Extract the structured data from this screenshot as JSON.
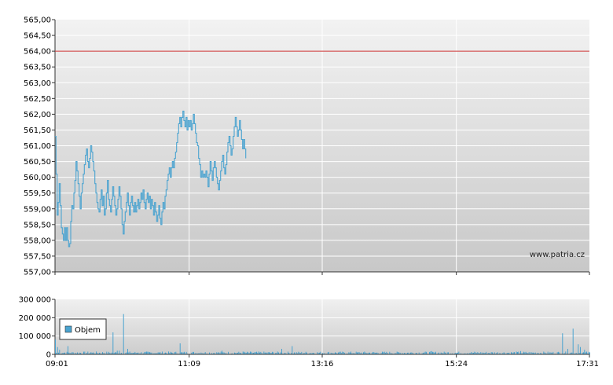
{
  "chart_data": [
    {
      "type": "line",
      "title": "",
      "xlabel": "",
      "ylabel": "",
      "ylim": [
        557.0,
        565.0
      ],
      "yticks": [
        "565,00",
        "564,50",
        "564,00",
        "563,50",
        "563,00",
        "562,50",
        "562,00",
        "561,50",
        "561,00",
        "560,50",
        "560,00",
        "559,50",
        "559,00",
        "558,50",
        "558,00",
        "557,50",
        "557,00"
      ],
      "ytick_values": [
        565,
        564.5,
        564,
        563.5,
        563,
        562.5,
        562,
        561.5,
        561,
        560.5,
        560,
        559.5,
        559,
        558.5,
        558,
        557.5,
        557
      ],
      "xticks": [
        "09:01",
        "11:09",
        "13:16",
        "15:24",
        "17:31"
      ],
      "xtick_minutes": [
        541,
        669,
        796,
        924,
        1051
      ],
      "xlim_minutes": [
        541,
        1051
      ],
      "reference_line": {
        "value": 564.0,
        "color": "#cc3333"
      },
      "line_color": "#4aa3d0",
      "watermark": "www.patria.cz",
      "grid": true,
      "series": [
        {
          "points": [
            [
              541,
              561.3
            ],
            [
              542,
              560.1
            ],
            [
              543,
              558.8
            ],
            [
              544,
              559.2
            ],
            [
              545,
              559.8
            ],
            [
              546,
              559.1
            ],
            [
              547,
              558.4
            ],
            [
              548,
              558.2
            ],
            [
              549,
              558.0
            ],
            [
              550,
              558.4
            ],
            [
              551,
              558.0
            ],
            [
              552,
              558.4
            ],
            [
              553,
              558.0
            ],
            [
              554,
              557.8
            ],
            [
              555,
              557.9
            ],
            [
              556,
              558.6
            ],
            [
              557,
              559.1
            ],
            [
              558,
              559.0
            ],
            [
              559,
              559.5
            ],
            [
              560,
              559.9
            ],
            [
              561,
              560.5
            ],
            [
              562,
              560.2
            ],
            [
              563,
              559.8
            ],
            [
              564,
              559.4
            ],
            [
              565,
              559.0
            ],
            [
              566,
              559.5
            ],
            [
              567,
              559.8
            ],
            [
              568,
              560.1
            ],
            [
              569,
              560.4
            ],
            [
              570,
              560.7
            ],
            [
              571,
              560.9
            ],
            [
              572,
              560.5
            ],
            [
              573,
              560.3
            ],
            [
              574,
              560.6
            ],
            [
              575,
              561.0
            ],
            [
              576,
              560.8
            ],
            [
              577,
              560.5
            ],
            [
              578,
              560.2
            ],
            [
              579,
              559.8
            ],
            [
              580,
              559.5
            ],
            [
              581,
              559.2
            ],
            [
              582,
              559.0
            ],
            [
              583,
              558.9
            ],
            [
              584,
              559.3
            ],
            [
              585,
              559.6
            ],
            [
              586,
              559.1
            ],
            [
              587,
              559.4
            ],
            [
              588,
              558.8
            ],
            [
              589,
              559.0
            ],
            [
              590,
              559.5
            ],
            [
              591,
              559.9
            ],
            [
              592,
              559.3
            ],
            [
              593,
              559.1
            ],
            [
              594,
              558.9
            ],
            [
              595,
              559.3
            ],
            [
              596,
              559.7
            ],
            [
              597,
              559.4
            ],
            [
              598,
              559.1
            ],
            [
              599,
              558.8
            ],
            [
              600,
              559.0
            ],
            [
              601,
              559.3
            ],
            [
              602,
              559.7
            ],
            [
              603,
              559.4
            ],
            [
              604,
              559.0
            ],
            [
              605,
              558.5
            ],
            [
              606,
              558.2
            ],
            [
              607,
              558.6
            ],
            [
              608,
              558.9
            ],
            [
              609,
              559.2
            ],
            [
              610,
              559.5
            ],
            [
              611,
              559.1
            ],
            [
              612,
              558.8
            ],
            [
              613,
              559.2
            ],
            [
              614,
              559.4
            ],
            [
              615,
              559.1
            ],
            [
              616,
              558.9
            ],
            [
              617,
              559.2
            ],
            [
              618,
              558.9
            ],
            [
              619,
              559.1
            ],
            [
              620,
              559.3
            ],
            [
              621,
              559.0
            ],
            [
              622,
              559.2
            ],
            [
              623,
              559.5
            ],
            [
              624,
              559.3
            ],
            [
              625,
              559.6
            ],
            [
              626,
              559.2
            ],
            [
              627,
              559.0
            ],
            [
              628,
              559.3
            ],
            [
              629,
              559.5
            ],
            [
              630,
              559.2
            ],
            [
              631,
              559.4
            ],
            [
              632,
              559.0
            ],
            [
              633,
              559.3
            ],
            [
              634,
              559.1
            ],
            [
              635,
              558.8
            ],
            [
              636,
              559.2
            ],
            [
              637,
              558.9
            ],
            [
              638,
              558.6
            ],
            [
              639,
              558.8
            ],
            [
              640,
              559.1
            ],
            [
              641,
              558.7
            ],
            [
              642,
              558.5
            ],
            [
              643,
              558.9
            ],
            [
              644,
              559.2
            ],
            [
              645,
              559.0
            ],
            [
              646,
              559.4
            ],
            [
              647,
              559.6
            ],
            [
              648,
              559.9
            ],
            [
              649,
              560.1
            ],
            [
              650,
              560.3
            ],
            [
              651,
              560.0
            ],
            [
              652,
              560.3
            ],
            [
              653,
              560.5
            ],
            [
              654,
              560.3
            ],
            [
              655,
              560.6
            ],
            [
              656,
              560.8
            ],
            [
              657,
              561.1
            ],
            [
              658,
              561.4
            ],
            [
              659,
              561.7
            ],
            [
              660,
              561.9
            ],
            [
              661,
              561.6
            ],
            [
              662,
              561.9
            ],
            [
              663,
              562.1
            ],
            [
              664,
              561.8
            ],
            [
              665,
              561.6
            ],
            [
              666,
              561.9
            ],
            [
              667,
              561.5
            ],
            [
              668,
              561.8
            ],
            [
              669,
              561.6
            ],
            [
              670,
              561.8
            ],
            [
              671,
              561.5
            ],
            [
              672,
              561.7
            ],
            [
              673,
              562.0
            ],
            [
              674,
              561.7
            ],
            [
              675,
              561.4
            ],
            [
              676,
              561.1
            ],
            [
              677,
              561.0
            ],
            [
              678,
              560.6
            ],
            [
              679,
              560.4
            ],
            [
              680,
              560.0
            ],
            [
              681,
              560.2
            ],
            [
              682,
              560.0
            ],
            [
              683,
              560.1
            ],
            [
              684,
              560.0
            ],
            [
              685,
              560.2
            ],
            [
              686,
              560.0
            ],
            [
              687,
              559.7
            ],
            [
              688,
              560.1
            ],
            [
              689,
              560.5
            ],
            [
              690,
              560.2
            ],
            [
              691,
              559.9
            ],
            [
              692,
              560.3
            ],
            [
              693,
              560.5
            ],
            [
              694,
              560.3
            ],
            [
              695,
              560.0
            ],
            [
              696,
              559.8
            ],
            [
              697,
              559.6
            ],
            [
              698,
              559.9
            ],
            [
              699,
              560.2
            ],
            [
              700,
              560.5
            ],
            [
              701,
              560.7
            ],
            [
              702,
              560.3
            ],
            [
              703,
              560.1
            ],
            [
              704,
              560.4
            ],
            [
              705,
              560.8
            ],
            [
              706,
              561.1
            ],
            [
              707,
              561.3
            ],
            [
              708,
              561.0
            ],
            [
              709,
              560.7
            ],
            [
              710,
              560.9
            ],
            [
              711,
              561.3
            ],
            [
              712,
              561.6
            ],
            [
              713,
              561.9
            ],
            [
              714,
              561.6
            ],
            [
              715,
              561.3
            ],
            [
              716,
              561.5
            ],
            [
              717,
              561.8
            ],
            [
              718,
              561.5
            ],
            [
              719,
              561.2
            ],
            [
              720,
              560.9
            ],
            [
              721,
              561.2
            ],
            [
              722,
              560.9
            ],
            [
              723,
              560.6
            ]
          ]
        }
      ]
    },
    {
      "type": "bar",
      "title": "",
      "xlabel": "",
      "ylabel": "",
      "ylim": [
        0,
        300000
      ],
      "yticks": [
        "300 000",
        "200 000",
        "100 000",
        "0"
      ],
      "ytick_values": [
        300000,
        200000,
        100000,
        0
      ],
      "xticks": [
        "09:01",
        "11:09",
        "13:16",
        "15:24",
        "17:31"
      ],
      "xtick_minutes": [
        541,
        669,
        796,
        924,
        1051
      ],
      "xlim_minutes": [
        541,
        1051
      ],
      "bar_color": "#4aa3d0",
      "legend": {
        "label": "Objem",
        "placement": "top-left"
      },
      "grid": true,
      "spikes": [
        [
          541,
          80000
        ],
        [
          543,
          40000
        ],
        [
          545,
          25000
        ],
        [
          550,
          10000
        ],
        [
          553,
          45000
        ],
        [
          575,
          12000
        ],
        [
          596,
          120000
        ],
        [
          600,
          20000
        ],
        [
          602,
          20000
        ],
        [
          606,
          220000
        ],
        [
          610,
          30000
        ],
        [
          620,
          10000
        ],
        [
          640,
          10000
        ],
        [
          660,
          60000
        ],
        [
          680,
          10000
        ],
        [
          700,
          20000
        ],
        [
          720,
          15000
        ],
        [
          757,
          30000
        ],
        [
          767,
          45000
        ],
        [
          900,
          18000
        ],
        [
          985,
          18000
        ],
        [
          1025,
          115000
        ],
        [
          1030,
          30000
        ],
        [
          1035,
          140000
        ],
        [
          1040,
          55000
        ],
        [
          1042,
          40000
        ],
        [
          1046,
          25000
        ]
      ]
    }
  ]
}
